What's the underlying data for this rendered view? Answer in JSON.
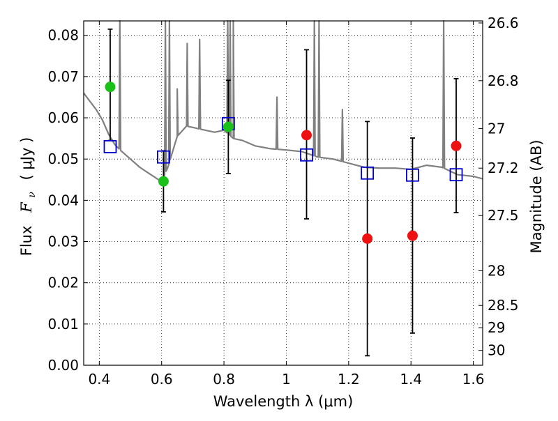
{
  "chart_data": {
    "type": "scatter",
    "xlabel": "Wavelength  λ (μm)",
    "ylabel_prefix": "Flux",
    "ylabel_symbol_main": "F",
    "ylabel_symbol_sub": "ν",
    "ylabel_units": "( μJy )",
    "y2label": "Magnitude (AB)",
    "xlim": [
      0.35,
      1.63
    ],
    "ylim": [
      0.0,
      0.0835
    ],
    "grid": true,
    "x_ticks": [
      {
        "value": 0.4,
        "label": "0.4"
      },
      {
        "value": 0.6,
        "label": "0.6"
      },
      {
        "value": 0.8,
        "label": "0.8"
      },
      {
        "value": 1.0,
        "label": "1"
      },
      {
        "value": 1.2,
        "label": "1.2"
      },
      {
        "value": 1.4,
        "label": "1.4"
      },
      {
        "value": 1.6,
        "label": "1.6"
      }
    ],
    "y_ticks": [
      {
        "value": 0.0,
        "label": "0.00"
      },
      {
        "value": 0.01,
        "label": "0.01"
      },
      {
        "value": 0.02,
        "label": "0.02"
      },
      {
        "value": 0.03,
        "label": "0.03"
      },
      {
        "value": 0.04,
        "label": "0.04"
      },
      {
        "value": 0.05,
        "label": "0.05"
      },
      {
        "value": 0.06,
        "label": "0.06"
      },
      {
        "value": 0.07,
        "label": "0.07"
      },
      {
        "value": 0.08,
        "label": "0.08"
      }
    ],
    "y2_ticks": [
      {
        "flux": 0.083,
        "label": "26.6"
      },
      {
        "flux": 0.069,
        "label": "26.8"
      },
      {
        "flux": 0.0574,
        "label": "27"
      },
      {
        "flux": 0.0478,
        "label": "27.2"
      },
      {
        "flux": 0.0363,
        "label": "27.5"
      },
      {
        "flux": 0.0229,
        "label": "28"
      },
      {
        "flux": 0.0145,
        "label": "28.5"
      },
      {
        "flux": 0.0091,
        "label": "29"
      },
      {
        "flux": 0.0036,
        "label": "30"
      }
    ],
    "observed": [
      {
        "x": 0.435,
        "y": 0.0675,
        "err_lo": 0.0545,
        "err_hi": 0.0815,
        "color": "#19c119"
      },
      {
        "x": 0.606,
        "y": 0.0446,
        "err_lo": 0.0372,
        "err_hi": 0.052,
        "color": "#19c119"
      },
      {
        "x": 0.814,
        "y": 0.0578,
        "err_lo": 0.0465,
        "err_hi": 0.0691,
        "color": "#19c119"
      },
      {
        "x": 1.065,
        "y": 0.0558,
        "err_lo": 0.0355,
        "err_hi": 0.0765,
        "color": "#ee1111"
      },
      {
        "x": 1.26,
        "y": 0.0307,
        "err_lo": 0.0023,
        "err_hi": 0.0591,
        "color": "#ee1111"
      },
      {
        "x": 1.405,
        "y": 0.0314,
        "err_lo": 0.0078,
        "err_hi": 0.0551,
        "color": "#ee1111"
      },
      {
        "x": 1.545,
        "y": 0.0532,
        "err_lo": 0.037,
        "err_hi": 0.0695,
        "color": "#ee1111"
      }
    ],
    "model_bands": [
      {
        "x": 0.435,
        "y": 0.053
      },
      {
        "x": 0.606,
        "y": 0.0505
      },
      {
        "x": 0.814,
        "y": 0.0586
      },
      {
        "x": 1.065,
        "y": 0.051
      },
      {
        "x": 1.26,
        "y": 0.0466
      },
      {
        "x": 1.405,
        "y": 0.0461
      },
      {
        "x": 1.545,
        "y": 0.0462
      }
    ],
    "model_spectrum": {
      "color": "#808080",
      "continuum": [
        [
          0.35,
          0.066
        ],
        [
          0.37,
          0.064
        ],
        [
          0.39,
          0.062
        ],
        [
          0.41,
          0.0595
        ],
        [
          0.43,
          0.056
        ],
        [
          0.45,
          0.0535
        ],
        [
          0.47,
          0.052
        ],
        [
          0.5,
          0.05
        ],
        [
          0.53,
          0.048
        ],
        [
          0.56,
          0.0465
        ],
        [
          0.59,
          0.045
        ],
        [
          0.6,
          0.0445
        ],
        [
          0.62,
          0.048
        ],
        [
          0.65,
          0.0555
        ],
        [
          0.68,
          0.058
        ],
        [
          0.71,
          0.0575
        ],
        [
          0.74,
          0.057
        ],
        [
          0.77,
          0.0565
        ],
        [
          0.8,
          0.057
        ],
        [
          0.83,
          0.055
        ],
        [
          0.86,
          0.0545
        ],
        [
          0.9,
          0.0532
        ],
        [
          0.95,
          0.0525
        ],
        [
          1.0,
          0.0522
        ],
        [
          1.05,
          0.0518
        ],
        [
          1.1,
          0.0505
        ],
        [
          1.15,
          0.05
        ],
        [
          1.2,
          0.049
        ],
        [
          1.25,
          0.048
        ],
        [
          1.3,
          0.0478
        ],
        [
          1.35,
          0.0478
        ],
        [
          1.4,
          0.0475
        ],
        [
          1.45,
          0.0485
        ],
        [
          1.5,
          0.048
        ],
        [
          1.55,
          0.0462
        ],
        [
          1.6,
          0.0458
        ],
        [
          1.63,
          0.0452
        ]
      ],
      "lines": [
        {
          "x": 0.466,
          "peak": 0.0835
        },
        {
          "x": 0.612,
          "peak": 0.0835
        },
        {
          "x": 0.625,
          "peak": 0.0835
        },
        {
          "x": 0.65,
          "peak": 0.067
        },
        {
          "x": 0.682,
          "peak": 0.078
        },
        {
          "x": 0.722,
          "peak": 0.079
        },
        {
          "x": 0.812,
          "peak": 0.0835
        },
        {
          "x": 0.82,
          "peak": 0.0835
        },
        {
          "x": 0.83,
          "peak": 0.0835
        },
        {
          "x": 0.97,
          "peak": 0.065
        },
        {
          "x": 1.09,
          "peak": 0.0835
        },
        {
          "x": 1.105,
          "peak": 0.0835
        },
        {
          "x": 1.18,
          "peak": 0.062
        },
        {
          "x": 1.505,
          "peak": 0.0835
        }
      ]
    }
  }
}
